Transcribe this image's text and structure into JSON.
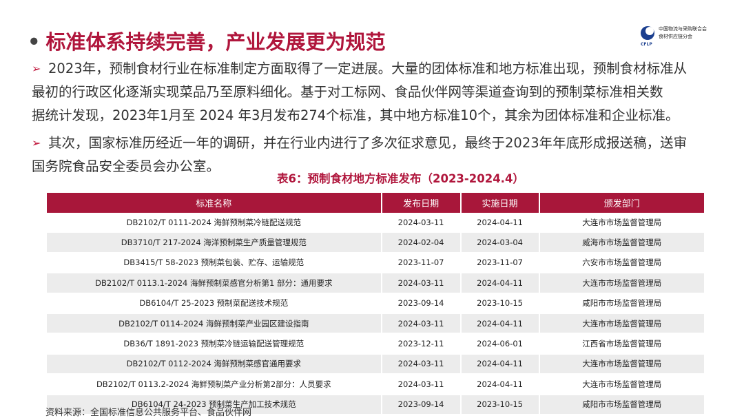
{
  "header": {
    "title": "标准体系持续完善，产业发展更为规范",
    "logo": {
      "org": "中国物流与采购联合会",
      "branch": "食材供应链分会",
      "abbr": "CFLP"
    }
  },
  "paragraphs": [
    {
      "lines": [
        "2023年，预制食材行业在标准制定方面取得了一定进展。大量的团体标准和地方标准出现，预制食材标准从",
        "最初的行政区化逐渐实现菜品乃至原料细化。基于对工标网、食品伙伴网等渠道查询到的预制菜标准相关数",
        "据统计发现，2023年1月至 2024 年3月发布274个标准，其中地方标准10个，其余为团体标准和企业标准。"
      ]
    },
    {
      "lines": [
        "其次，国家标准历经近一年的调研，并在行业内进行了多次征求意见，最终于2023年年底形成报送稿，送审",
        "国务院食品安全委员会办公室。"
      ]
    }
  ],
  "table": {
    "title": "表6：预制食材地方标准发布（2023-2024.4）",
    "columns": [
      "标准名称",
      "发布日期",
      "实施日期",
      "颁发部门"
    ],
    "rows": [
      [
        "DB2102/T 0111-2024 海鲜预制菜冷链配送规范",
        "2024-03-11",
        "2024-04-11",
        "大连市市场监督管理局"
      ],
      [
        "DB3710/T 217-2024 海洋预制菜生产质量管理规范",
        "2024-02-04",
        "2024-03-04",
        "威海市市场监督管理局"
      ],
      [
        "DB3415/T 58-2023 预制菜包装、贮存、运输规范",
        "2023-11-07",
        "2023-11-07",
        "六安市市场监督管理局"
      ],
      [
        "DB2102/T 0113.1-2024 海鲜预制菜感官分析第1 部分：通用要求",
        "2024-03-11",
        "2024-04-11",
        "大连市市场监督管理局"
      ],
      [
        "DB6104/T 25-2023 预制菜配送技术规范",
        "2023-09-14",
        "2023-10-15",
        "咸阳市市场监督管理局"
      ],
      [
        "DB2102/T 0114-2024 海鲜预制菜产业园区建设指南",
        "2024-03-11",
        "2024-04-11",
        "大连市市场监督管理局"
      ],
      [
        "DB36/T 1891-2023 预制菜冷链运输配送管理规范",
        "2023-12-11",
        "2024-06-01",
        "江西省市场监督管理局"
      ],
      [
        "DB2102/T 0112-2024 海鲜预制菜感官通用要求",
        "2024-03-11",
        "2024-04-11",
        "大连市市场监督管理局"
      ],
      [
        "DB2102/T 0113.2-2024 海鲜预制菜产业分析第2部分：人员要求",
        "2024-03-11",
        "2024-04-11",
        "大连市市场监督管理局"
      ],
      [
        "DB6104/T 24-2023 预制菜生产加工技术规范",
        "2023-09-14",
        "2023-10-15",
        "咸阳市市场监督管理局"
      ]
    ]
  },
  "source": "资料来源：全国标准信息公共服务平台、食品伙伴网"
}
